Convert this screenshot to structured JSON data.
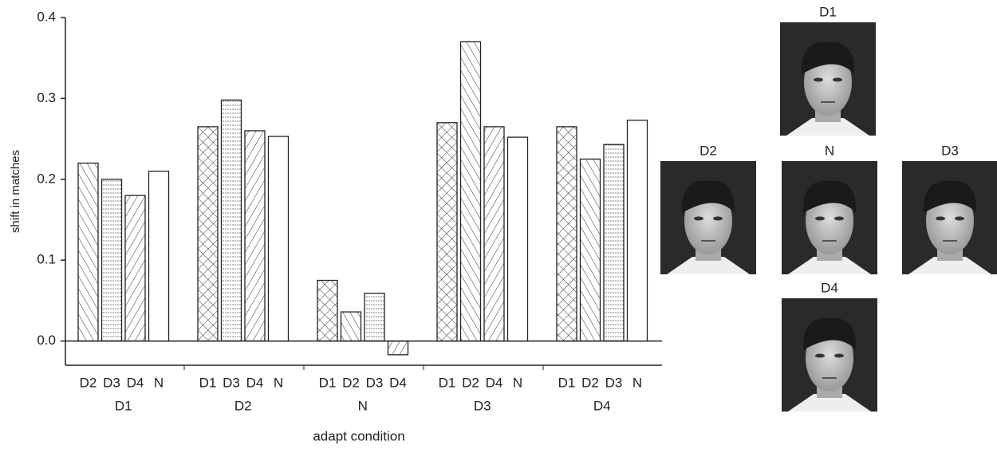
{
  "chart_data": {
    "type": "grouped-bar",
    "x_label": "adapt condition",
    "y_label": "shift in matches",
    "groups": [
      {
        "name": "D1",
        "bars": [
          "D2",
          "D3",
          "D4",
          "N"
        ],
        "values": [
          0.22,
          0.2,
          0.18,
          0.21
        ]
      },
      {
        "name": "D2",
        "bars": [
          "D1",
          "D3",
          "D4",
          "N"
        ],
        "values": [
          0.265,
          0.298,
          0.26,
          0.253
        ]
      },
      {
        "name": "N",
        "bars": [
          "D1",
          "D2",
          "D3",
          "D4"
        ],
        "values": [
          0.075,
          0.036,
          0.059,
          -0.017
        ]
      },
      {
        "name": "D3",
        "bars": [
          "D1",
          "D2",
          "D4",
          "N"
        ],
        "values": [
          0.27,
          0.37,
          0.265,
          0.252
        ]
      },
      {
        "name": "D4",
        "bars": [
          "D1",
          "D2",
          "D3",
          "N"
        ],
        "values": [
          0.265,
          0.225,
          0.243,
          0.273
        ]
      }
    ],
    "patterns": {
      "D1": "crosshatch",
      "D2": "diagonal",
      "D3": "horizontal",
      "D4": "backslash",
      "N": "none"
    },
    "ylim": [
      -0.03,
      0.4
    ],
    "yticks": [
      {
        "value": 0,
        "label": "0.0"
      },
      0.1,
      0.2,
      0.3,
      0.4
    ]
  },
  "faces": [
    {
      "label": "D1"
    },
    {
      "label": "D2"
    },
    {
      "label": "N"
    },
    {
      "label": "D3"
    },
    {
      "label": "D4"
    }
  ]
}
